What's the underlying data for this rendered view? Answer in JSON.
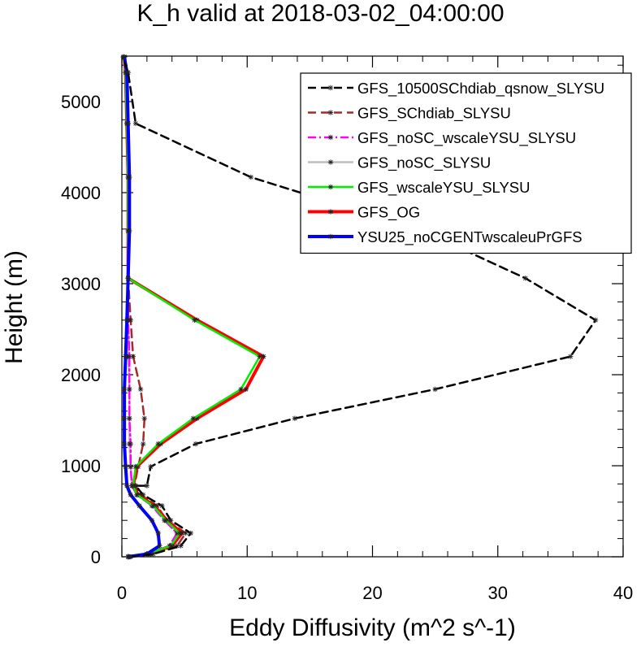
{
  "chart_data": {
    "type": "line",
    "title": "K_h valid at 2018-03-02_04:00:00",
    "xlabel": "Eddy Diffusivity (m^2 s^-1)",
    "ylabel": "Height (m)",
    "xlim": [
      0,
      40
    ],
    "ylim": [
      0,
      5500
    ],
    "xticks": [
      "0",
      "10",
      "20",
      "30",
      "40"
    ],
    "yticks": [
      "0",
      "1000",
      "2000",
      "3000",
      "4000",
      "5000"
    ],
    "grid": false,
    "legend_position": "top-right",
    "series": [
      {
        "name": "GFS_10500SChdiab_qsnow_SLYSU",
        "color": "#000000",
        "dash": "dashed",
        "x": [
          0.7,
          2.5,
          4.7,
          5.5,
          3.9,
          3.2,
          1.7,
          1.1,
          2.0,
          2.3,
          5.9,
          13.8,
          25.0,
          35.8,
          37.8,
          32.2,
          24.0,
          10.3,
          1.1,
          0.5,
          0.1
        ],
        "y": [
          0,
          30,
          120,
          260,
          400,
          560,
          680,
          780,
          780,
          990,
          1240,
          1520,
          1840,
          2200,
          2600,
          3060,
          3580,
          4170,
          4760,
          5320,
          5490
        ]
      },
      {
        "name": "GFS_SChdiab_SLYSU",
        "color": "#a52a2a",
        "dash": "dashed",
        "x": [
          0.6,
          2.3,
          4.4,
          5.1,
          3.6,
          2.8,
          1.5,
          1.0,
          1.3,
          1.7,
          1.8,
          1.5,
          0.9,
          0.7,
          0.5,
          0.5,
          0.6,
          0.5,
          0.4,
          0.2
        ],
        "y": [
          0,
          30,
          120,
          260,
          400,
          560,
          680,
          780,
          990,
          1240,
          1520,
          1840,
          2200,
          2600,
          3060,
          3580,
          4170,
          4760,
          5320,
          5490
        ]
      },
      {
        "name": "GFS_noSC_wscaleYSU_SLYSU",
        "color": "#ff00ff",
        "dash": "dashdot",
        "x": [
          0.5,
          2.0,
          3.8,
          4.4,
          3.4,
          2.4,
          1.2,
          0.8,
          0.7,
          0.7,
          0.6,
          0.6,
          0.6,
          0.5,
          0.5,
          0.5,
          0.5,
          0.4,
          0.3,
          0.2
        ],
        "y": [
          0,
          30,
          120,
          260,
          400,
          560,
          680,
          780,
          990,
          1240,
          1520,
          1840,
          2200,
          2600,
          3060,
          3580,
          4170,
          4760,
          5320,
          5490
        ]
      },
      {
        "name": "GFS_noSC_SLYSU",
        "color": "#bdbdbd",
        "dash": "solid",
        "x": [
          0.5,
          2.1,
          4.0,
          4.8,
          3.6,
          2.6,
          1.3,
          0.8,
          0.7,
          0.6,
          0.6,
          0.6,
          0.5,
          0.5,
          0.5,
          0.5,
          0.5,
          0.4,
          0.3,
          0.2
        ],
        "y": [
          0,
          30,
          120,
          260,
          400,
          560,
          680,
          780,
          990,
          1240,
          1520,
          1840,
          2200,
          2600,
          3060,
          3580,
          4170,
          4760,
          5320,
          5490
        ]
      },
      {
        "name": "GFS_wscaleYSU_SLYSU",
        "color": "#00ee00",
        "dash": "solid",
        "x": [
          0.5,
          2.0,
          3.9,
          4.6,
          3.5,
          2.5,
          1.2,
          0.9,
          1.1,
          2.9,
          5.7,
          9.5,
          11.0,
          5.8,
          0.5,
          0.5,
          0.5,
          0.4,
          0.3,
          0.2
        ],
        "y": [
          0,
          30,
          120,
          260,
          400,
          560,
          680,
          780,
          990,
          1240,
          1520,
          1840,
          2200,
          2600,
          3060,
          3580,
          4170,
          4760,
          5320,
          5490
        ]
      },
      {
        "name": "GFS_OG",
        "color": "#ff0000",
        "dash": "solid",
        "x": [
          0.5,
          2.1,
          4.0,
          4.8,
          3.6,
          2.6,
          1.3,
          0.9,
          1.2,
          3.1,
          6.0,
          9.9,
          11.3,
          6.0,
          0.5,
          0.5,
          0.5,
          0.4,
          0.3,
          0.2
        ],
        "y": [
          0,
          30,
          120,
          260,
          400,
          560,
          680,
          780,
          990,
          1240,
          1520,
          1840,
          2200,
          2600,
          3060,
          3580,
          4170,
          4760,
          5320,
          5490
        ]
      },
      {
        "name": "YSU25_noCGENTwscaleuPrGFS",
        "color": "#0000ff",
        "dash": "solid",
        "x": [
          0.5,
          2.0,
          3.0,
          2.9,
          2.4,
          1.4,
          0.7,
          0.4,
          0.3,
          0.2,
          0.2,
          0.2,
          0.3,
          0.4,
          0.5,
          0.6,
          0.6,
          0.5,
          0.4,
          0.2
        ],
        "y": [
          0,
          30,
          120,
          260,
          400,
          560,
          680,
          780,
          990,
          1240,
          1520,
          1840,
          2200,
          2600,
          3060,
          3580,
          4170,
          4760,
          5320,
          5490
        ]
      }
    ]
  }
}
